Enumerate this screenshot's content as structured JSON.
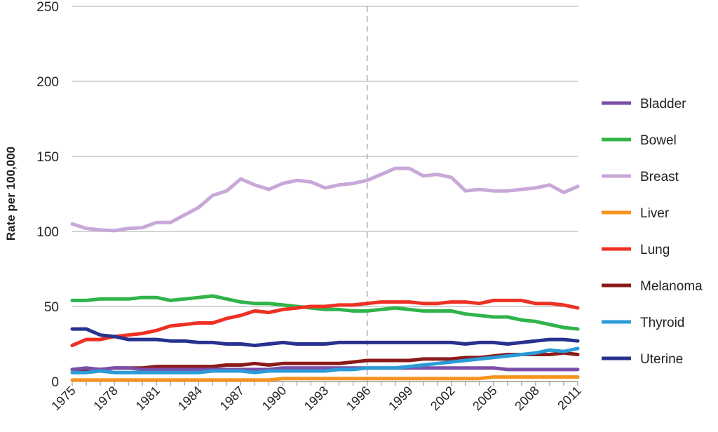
{
  "chart_data": {
    "type": "line",
    "title": "",
    "xlabel": "",
    "ylabel": "Rate per 100,000",
    "ylim": [
      0,
      250
    ],
    "yticks": [
      0,
      50,
      100,
      150,
      200,
      250
    ],
    "xlim": [
      1975,
      2011
    ],
    "xtick_labels": [
      "1975",
      "1978",
      "1981",
      "1984",
      "1987",
      "1990",
      "1993",
      "1996",
      "1999",
      "2002",
      "2005",
      "2008",
      "2011"
    ],
    "grid": "horizontal",
    "reference_line_x": 1996,
    "legend_position": "right",
    "x": [
      1975,
      1976,
      1977,
      1978,
      1979,
      1980,
      1981,
      1982,
      1983,
      1984,
      1985,
      1986,
      1987,
      1988,
      1989,
      1990,
      1991,
      1992,
      1993,
      1994,
      1995,
      1996,
      1997,
      1998,
      1999,
      2000,
      2001,
      2002,
      2003,
      2004,
      2005,
      2006,
      2007,
      2008,
      2009,
      2010,
      2011
    ],
    "series": [
      {
        "name": "Bladder",
        "color": "#7b4fa8",
        "values": [
          8,
          9,
          8,
          9,
          9,
          8,
          8,
          8,
          8,
          8,
          8,
          8,
          8,
          8,
          8,
          9,
          9,
          9,
          9,
          9,
          9,
          9,
          9,
          9,
          9,
          9,
          9,
          9,
          9,
          9,
          9,
          8,
          8,
          8,
          8,
          8,
          8
        ]
      },
      {
        "name": "Bowel",
        "color": "#2fb44a",
        "values": [
          54,
          54,
          55,
          55,
          55,
          56,
          56,
          54,
          55,
          56,
          57,
          55,
          53,
          52,
          52,
          51,
          50,
          49,
          48,
          48,
          47,
          47,
          48,
          49,
          48,
          47,
          47,
          47,
          45,
          44,
          43,
          43,
          41,
          40,
          38,
          36,
          35
        ]
      },
      {
        "name": "Breast",
        "color": "#c8a8d8",
        "values": [
          105,
          102,
          101,
          100.5,
          102,
          102.5,
          106,
          106,
          111,
          116,
          124,
          127,
          135,
          131,
          128,
          132,
          134,
          133,
          129,
          131,
          132,
          134,
          138,
          142,
          142,
          137,
          138,
          136,
          127,
          128,
          127,
          127,
          128,
          129,
          131,
          126,
          130
        ]
      },
      {
        "name": "Liver",
        "color": "#f7931e",
        "values": [
          1,
          1,
          1,
          1,
          1,
          1,
          1,
          1,
          1,
          1,
          1,
          1,
          1,
          1,
          1,
          2,
          2,
          2,
          2,
          2,
          2,
          2,
          2,
          2,
          2,
          2,
          2,
          2,
          2,
          2,
          3,
          3,
          3,
          3,
          3,
          3,
          3
        ]
      },
      {
        "name": "Lung",
        "color": "#ee3124",
        "values": [
          24,
          28,
          28,
          30,
          31,
          32,
          34,
          37,
          38,
          39,
          39,
          42,
          44,
          47,
          46,
          48,
          49,
          50,
          50,
          51,
          51,
          52,
          53,
          53,
          53,
          52,
          52,
          53,
          53,
          52,
          54,
          54,
          54,
          52,
          52,
          51,
          49
        ]
      },
      {
        "name": "Melanoma",
        "color": "#8b1a1a",
        "values": [
          8,
          8,
          8,
          9,
          9,
          9,
          10,
          10,
          10,
          10,
          10,
          11,
          11,
          12,
          11,
          12,
          12,
          12,
          12,
          12,
          13,
          14,
          14,
          14,
          14,
          15,
          15,
          15,
          16,
          16,
          17,
          18,
          18,
          18,
          18,
          19,
          18
        ]
      },
      {
        "name": "Thyroid",
        "color": "#2b9bd8",
        "values": [
          6,
          6,
          7,
          6,
          6,
          6,
          6,
          6,
          6,
          6,
          7,
          7,
          7,
          6,
          7,
          7,
          7,
          7,
          7,
          8,
          8,
          9,
          9,
          9,
          10,
          11,
          12,
          13,
          14,
          15,
          16,
          17,
          18,
          19,
          21,
          20,
          22
        ]
      },
      {
        "name": "Uterine",
        "color": "#27318f",
        "values": [
          35,
          35,
          31,
          30,
          28,
          28,
          28,
          27,
          27,
          26,
          26,
          25,
          25,
          24,
          25,
          26,
          25,
          25,
          25,
          26,
          26,
          26,
          26,
          26,
          26,
          26,
          26,
          26,
          25,
          26,
          26,
          25,
          26,
          27,
          28,
          28,
          27
        ]
      }
    ]
  }
}
